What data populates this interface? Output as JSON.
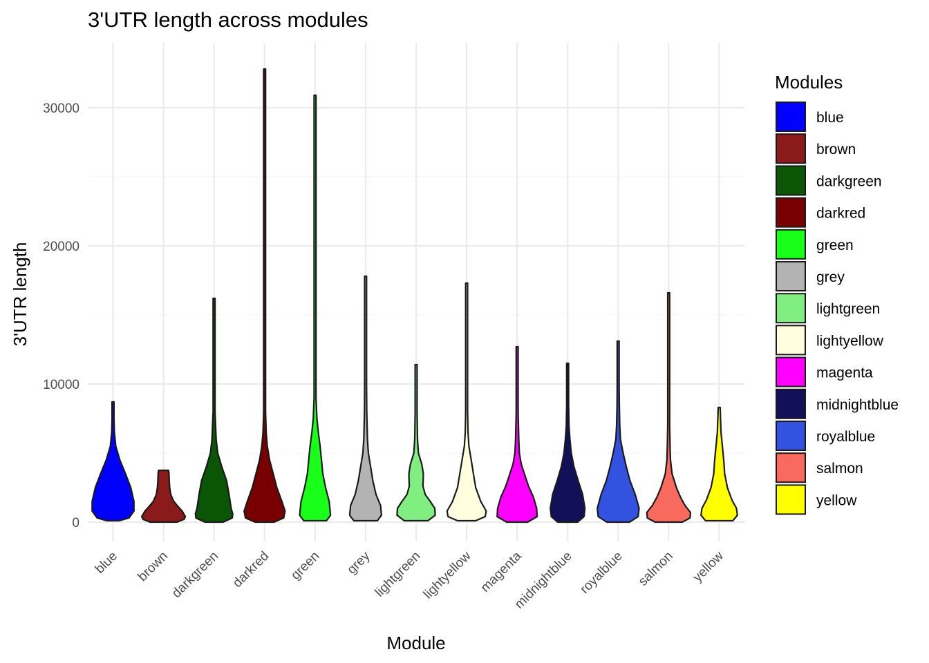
{
  "chart_data": {
    "type": "violin",
    "title": "3'UTR length across modules",
    "xlabel": "Module",
    "ylabel": "3'UTR length",
    "ylim": [
      -1400,
      34700
    ],
    "yticks": [
      0,
      10000,
      20000,
      30000
    ],
    "grid": true,
    "legend": {
      "title": "Modules",
      "placement": "right"
    },
    "categories": [
      "blue",
      "brown",
      "darkgreen",
      "darkred",
      "green",
      "grey",
      "lightgreen",
      "lightyellow",
      "magenta",
      "midnightblue",
      "royalblue",
      "salmon",
      "yellow"
    ],
    "series": [
      {
        "name": "blue",
        "color": "#0000FF",
        "min": 100,
        "max": 8700,
        "profile": [
          [
            100,
            0.28
          ],
          [
            300,
            0.7
          ],
          [
            800,
            0.92
          ],
          [
            1500,
            0.92
          ],
          [
            2500,
            0.78
          ],
          [
            3500,
            0.55
          ],
          [
            4500,
            0.3
          ],
          [
            5500,
            0.12
          ],
          [
            6500,
            0.06
          ],
          [
            7500,
            0.04
          ],
          [
            8700,
            0.02
          ]
        ]
      },
      {
        "name": "brown",
        "color": "#8B1A1A",
        "min": 0,
        "max": 3750,
        "profile": [
          [
            0,
            0.6
          ],
          [
            200,
            0.9
          ],
          [
            400,
            0.96
          ],
          [
            800,
            0.82
          ],
          [
            1200,
            0.6
          ],
          [
            1500,
            0.45
          ],
          [
            2000,
            0.32
          ],
          [
            2500,
            0.27
          ],
          [
            3000,
            0.25
          ],
          [
            3500,
            0.24
          ],
          [
            3750,
            0.22
          ]
        ]
      },
      {
        "name": "darkgreen",
        "color": "#0B5506",
        "min": 0,
        "max": 16200,
        "profile": [
          [
            0,
            0.4
          ],
          [
            300,
            0.8
          ],
          [
            600,
            0.82
          ],
          [
            1000,
            0.75
          ],
          [
            2000,
            0.66
          ],
          [
            3000,
            0.55
          ],
          [
            4000,
            0.34
          ],
          [
            5000,
            0.16
          ],
          [
            6000,
            0.09
          ],
          [
            8000,
            0.04
          ],
          [
            12000,
            0.02
          ],
          [
            16200,
            0.01
          ]
        ]
      },
      {
        "name": "darkred",
        "color": "#780000",
        "min": 0,
        "max": 32800,
        "profile": [
          [
            0,
            0.42
          ],
          [
            300,
            0.84
          ],
          [
            800,
            0.9
          ],
          [
            1500,
            0.76
          ],
          [
            2500,
            0.54
          ],
          [
            3500,
            0.38
          ],
          [
            4500,
            0.22
          ],
          [
            5500,
            0.12
          ],
          [
            6500,
            0.07
          ],
          [
            8000,
            0.04
          ],
          [
            15000,
            0.02
          ],
          [
            32800,
            0.01
          ]
        ]
      },
      {
        "name": "green",
        "color": "#1AFF1A",
        "min": 100,
        "max": 30900,
        "profile": [
          [
            100,
            0.5
          ],
          [
            500,
            0.68
          ],
          [
            1500,
            0.62
          ],
          [
            2500,
            0.46
          ],
          [
            3500,
            0.34
          ],
          [
            4500,
            0.28
          ],
          [
            5500,
            0.22
          ],
          [
            6500,
            0.14
          ],
          [
            7500,
            0.08
          ],
          [
            9000,
            0.03
          ],
          [
            15000,
            0.02
          ],
          [
            30900,
            0.01
          ]
        ]
      },
      {
        "name": "grey",
        "color": "#B3B3B3",
        "min": 100,
        "max": 17800,
        "profile": [
          [
            100,
            0.52
          ],
          [
            500,
            0.7
          ],
          [
            1200,
            0.66
          ],
          [
            2000,
            0.46
          ],
          [
            3000,
            0.32
          ],
          [
            4000,
            0.22
          ],
          [
            5000,
            0.12
          ],
          [
            6000,
            0.08
          ],
          [
            8000,
            0.05
          ],
          [
            10000,
            0.04
          ],
          [
            13000,
            0.02
          ],
          [
            17800,
            0.01
          ]
        ]
      },
      {
        "name": "lightgreen",
        "color": "#80EE80",
        "min": 100,
        "max": 11400,
        "profile": [
          [
            100,
            0.52
          ],
          [
            500,
            0.84
          ],
          [
            1000,
            0.82
          ],
          [
            1500,
            0.62
          ],
          [
            2000,
            0.4
          ],
          [
            2600,
            0.3
          ],
          [
            3500,
            0.32
          ],
          [
            4200,
            0.25
          ],
          [
            5000,
            0.1
          ],
          [
            6000,
            0.06
          ],
          [
            8000,
            0.04
          ],
          [
            11400,
            0.01
          ]
        ]
      },
      {
        "name": "lightyellow",
        "color": "#FFFFE0",
        "min": 100,
        "max": 17300,
        "profile": [
          [
            100,
            0.4
          ],
          [
            400,
            0.82
          ],
          [
            800,
            0.86
          ],
          [
            1500,
            0.62
          ],
          [
            2500,
            0.4
          ],
          [
            3500,
            0.3
          ],
          [
            4500,
            0.2
          ],
          [
            5500,
            0.1
          ],
          [
            6500,
            0.06
          ],
          [
            8000,
            0.04
          ],
          [
            12000,
            0.02
          ],
          [
            17300,
            0.01
          ]
        ]
      },
      {
        "name": "magenta",
        "color": "#FF00FF",
        "min": 0,
        "max": 12700,
        "profile": [
          [
            0,
            0.46
          ],
          [
            400,
            0.88
          ],
          [
            1000,
            0.86
          ],
          [
            1800,
            0.72
          ],
          [
            2600,
            0.5
          ],
          [
            3400,
            0.34
          ],
          [
            4200,
            0.18
          ],
          [
            5000,
            0.1
          ],
          [
            6000,
            0.07
          ],
          [
            8000,
            0.04
          ],
          [
            10000,
            0.03
          ],
          [
            12700,
            0.01
          ]
        ]
      },
      {
        "name": "midnightblue",
        "color": "#111059",
        "min": 0,
        "max": 11500,
        "profile": [
          [
            0,
            0.44
          ],
          [
            400,
            0.72
          ],
          [
            1000,
            0.76
          ],
          [
            2000,
            0.66
          ],
          [
            3000,
            0.46
          ],
          [
            4000,
            0.28
          ],
          [
            5000,
            0.16
          ],
          [
            6000,
            0.1
          ],
          [
            7000,
            0.06
          ],
          [
            8500,
            0.04
          ],
          [
            10000,
            0.03
          ],
          [
            11500,
            0.01
          ]
        ]
      },
      {
        "name": "royalblue",
        "color": "#3352E0",
        "min": 0,
        "max": 13100,
        "profile": [
          [
            0,
            0.5
          ],
          [
            400,
            0.88
          ],
          [
            1000,
            0.92
          ],
          [
            2000,
            0.75
          ],
          [
            3000,
            0.52
          ],
          [
            4000,
            0.36
          ],
          [
            5000,
            0.22
          ],
          [
            6000,
            0.1
          ],
          [
            7000,
            0.07
          ],
          [
            8500,
            0.05
          ],
          [
            10000,
            0.03
          ],
          [
            13100,
            0.01
          ]
        ]
      },
      {
        "name": "salmon",
        "color": "#F8695E",
        "min": 0,
        "max": 16600,
        "profile": [
          [
            0,
            0.6
          ],
          [
            300,
            0.94
          ],
          [
            700,
            0.96
          ],
          [
            1200,
            0.72
          ],
          [
            1800,
            0.52
          ],
          [
            2500,
            0.34
          ],
          [
            3500,
            0.15
          ],
          [
            4500,
            0.08
          ],
          [
            5500,
            0.06
          ],
          [
            7000,
            0.04
          ],
          [
            10000,
            0.03
          ],
          [
            16600,
            0.01
          ]
        ]
      },
      {
        "name": "yellow",
        "color": "#FFFF00",
        "min": 100,
        "max": 8300,
        "profile": [
          [
            100,
            0.6
          ],
          [
            500,
            0.8
          ],
          [
            1000,
            0.76
          ],
          [
            1600,
            0.56
          ],
          [
            2500,
            0.36
          ],
          [
            3500,
            0.24
          ],
          [
            4500,
            0.2
          ],
          [
            5500,
            0.14
          ],
          [
            6500,
            0.08
          ],
          [
            7500,
            0.06
          ],
          [
            8300,
            0.04
          ]
        ]
      }
    ]
  }
}
